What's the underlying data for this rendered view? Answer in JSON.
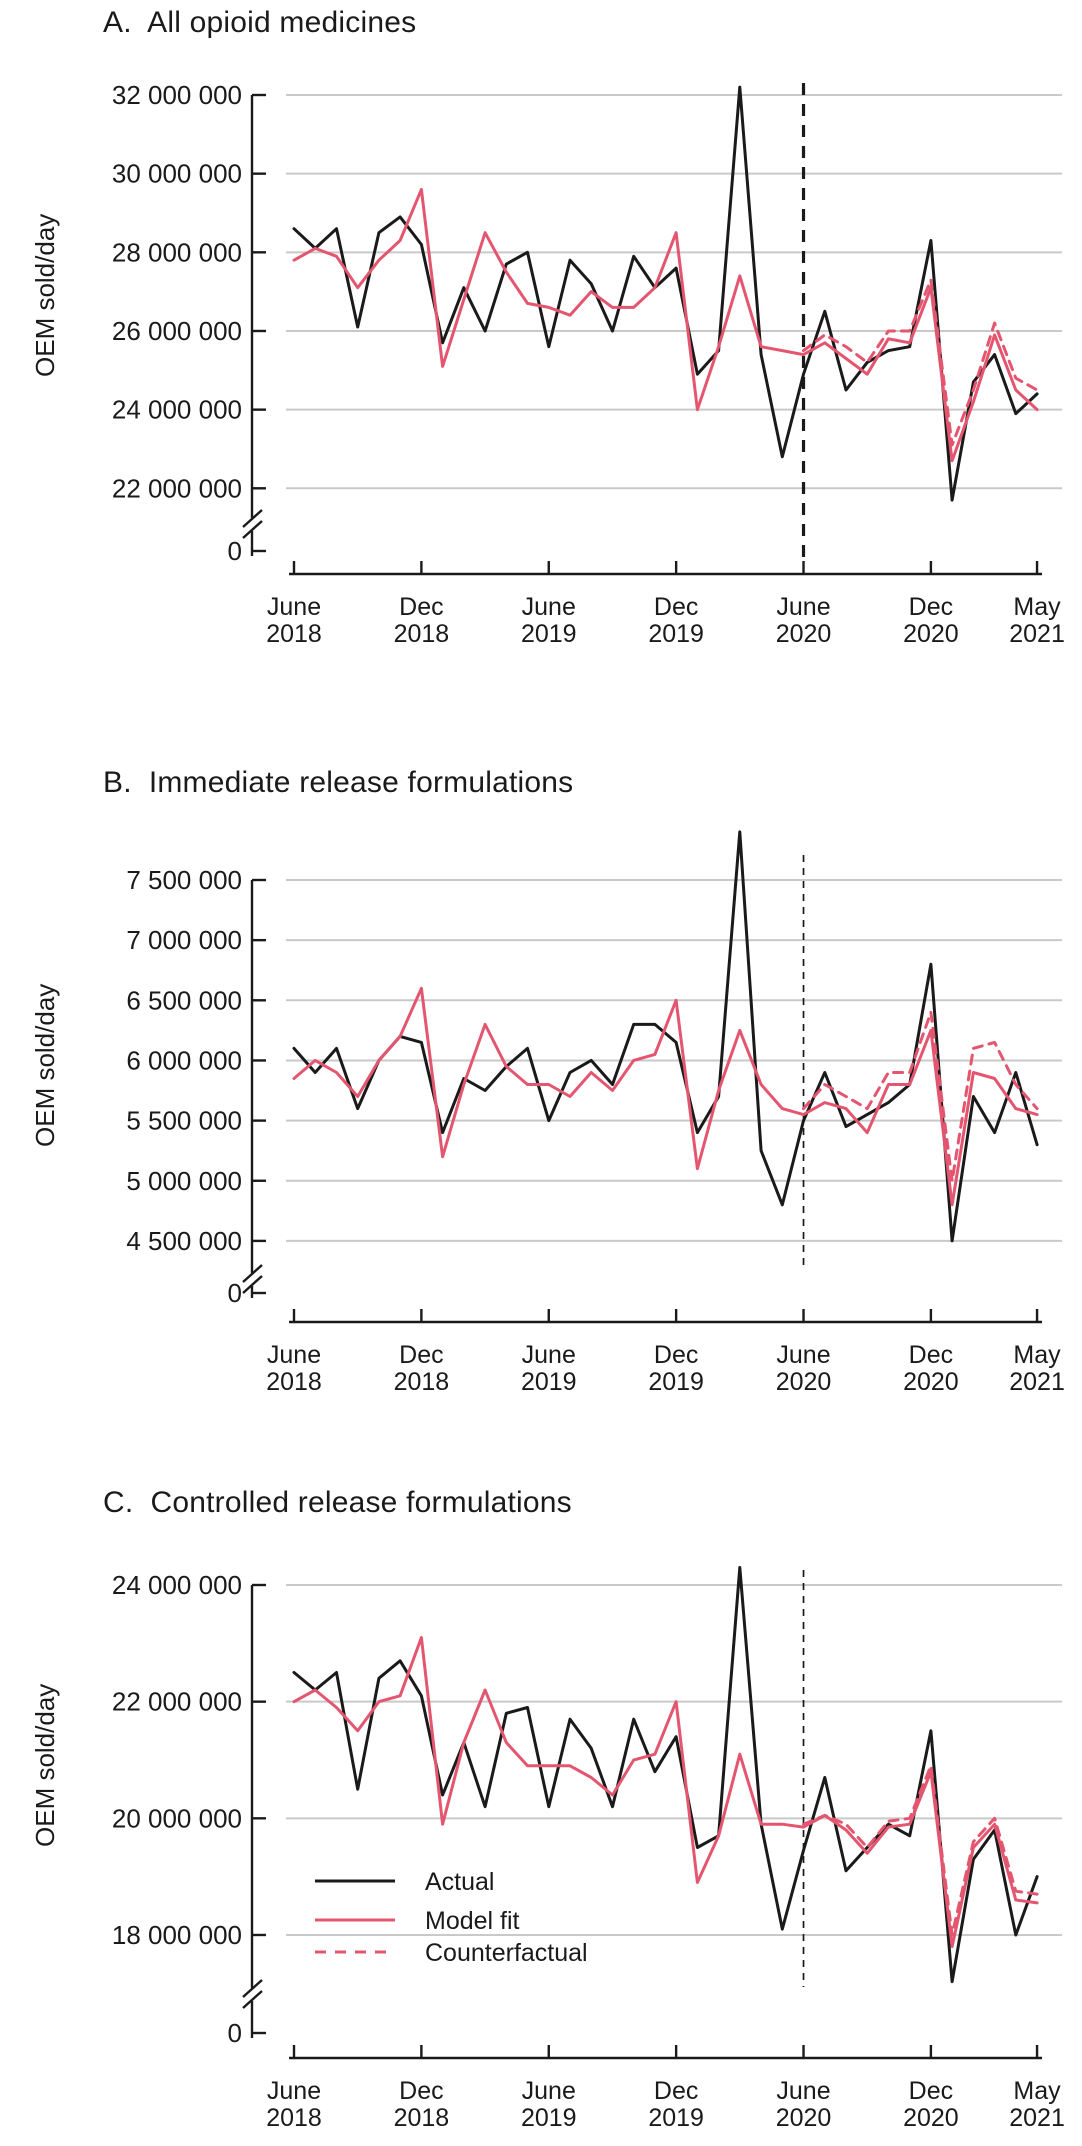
{
  "figure": {
    "ylabel": "OEM sold/day",
    "colors": {
      "actual": "#1a1a1a",
      "model": "#e4566f",
      "grid": "#c9c9c9",
      "axis": "#1a1a1a"
    },
    "x_axis": {
      "unit": "month",
      "start": "June 2018",
      "end": "May 2021",
      "n_points": 36,
      "tick_labels": [
        [
          "June",
          "2018"
        ],
        [
          "Dec",
          "2018"
        ],
        [
          "June",
          "2019"
        ],
        [
          "Dec",
          "2019"
        ],
        [
          "June",
          "2020"
        ],
        [
          "Dec",
          "2020"
        ],
        [
          "May",
          "2021"
        ]
      ],
      "tick_month_index": [
        0,
        6,
        12,
        18,
        24,
        30,
        35
      ]
    },
    "intervention_line": {
      "month_index": 24,
      "at": "June 2020",
      "style": "dashed-black-vertical"
    },
    "legend": {
      "entries": [
        "Actual",
        "Model fit",
        "Counterfactual"
      ],
      "location": "inside panel C, lower left"
    }
  },
  "chart_data": [
    {
      "panel": "A",
      "title": "A.  All opioid medicines",
      "type": "line",
      "ylabel": "OEM sold/day",
      "y_ticks": [
        32000000,
        30000000,
        28000000,
        26000000,
        24000000,
        22000000
      ],
      "y_tick_labels": [
        "32 000 000",
        "30 000 000",
        "28 000 000",
        "26 000 000",
        "24 000 000",
        "22 000 000"
      ],
      "zero_label": "0",
      "y_axis_break": true,
      "intervention_index": 24,
      "show_legend": false,
      "series": [
        {
          "name": "Actual",
          "style": "solid",
          "color": "#1a1a1a",
          "start_index": 0,
          "values": [
            28600000,
            28100000,
            28600000,
            26100000,
            28500000,
            28900000,
            28200000,
            25700000,
            27100000,
            26000000,
            27700000,
            28000000,
            25600000,
            27800000,
            27200000,
            26000000,
            27900000,
            27100000,
            27600000,
            24900000,
            25500000,
            32200000,
            25400000,
            22800000,
            24900000,
            26500000,
            24500000,
            25200000,
            25500000,
            25600000,
            28300000,
            21700000,
            24700000,
            25400000,
            23900000,
            24400000
          ]
        },
        {
          "name": "Model fit",
          "style": "solid",
          "color": "#e4566f",
          "start_index": 0,
          "values": [
            27800000,
            28100000,
            27900000,
            27100000,
            27800000,
            28300000,
            29600000,
            25100000,
            26800000,
            28500000,
            27500000,
            26700000,
            26600000,
            26400000,
            27000000,
            26600000,
            26600000,
            27100000,
            28500000,
            24000000,
            25600000,
            27400000,
            25600000,
            25500000,
            25400000,
            25700000,
            25300000,
            24900000,
            25800000,
            25700000,
            27100000,
            22700000,
            24200000,
            25900000,
            24500000,
            24000000
          ]
        },
        {
          "name": "Counterfactual",
          "style": "dashed",
          "color": "#e4566f",
          "start_index": 24,
          "values": [
            25500000,
            25900000,
            25600000,
            25200000,
            26000000,
            26000000,
            27300000,
            23100000,
            24500000,
            26200000,
            24800000,
            24500000
          ]
        }
      ]
    },
    {
      "panel": "B",
      "title": "B.  Immediate release formulations",
      "type": "line",
      "ylabel": "OEM sold/day",
      "y_ticks": [
        7500000,
        7000000,
        6500000,
        6000000,
        5500000,
        5000000,
        4500000
      ],
      "y_tick_labels": [
        "7 500 000",
        "7 000 000",
        "6 500 000",
        "6 000 000",
        "5 500 000",
        "5 000 000",
        "4 500 000"
      ],
      "zero_label": "0",
      "y_axis_break": true,
      "intervention_index": 24,
      "show_legend": false,
      "series": [
        {
          "name": "Actual",
          "style": "solid",
          "color": "#1a1a1a",
          "start_index": 0,
          "values": [
            6100000,
            5900000,
            6100000,
            5600000,
            6000000,
            6200000,
            6150000,
            5400000,
            5850000,
            5750000,
            5950000,
            6100000,
            5500000,
            5900000,
            6000000,
            5800000,
            6300000,
            6300000,
            6150000,
            5400000,
            5700000,
            7900000,
            5250000,
            4800000,
            5500000,
            5900000,
            5450000,
            5550000,
            5650000,
            5800000,
            6800000,
            4500000,
            5700000,
            5400000,
            5900000,
            5300000
          ]
        },
        {
          "name": "Model fit",
          "style": "solid",
          "color": "#e4566f",
          "start_index": 0,
          "values": [
            5850000,
            6000000,
            5900000,
            5700000,
            6000000,
            6200000,
            6600000,
            5200000,
            5800000,
            6300000,
            5950000,
            5800000,
            5800000,
            5700000,
            5900000,
            5750000,
            6000000,
            6050000,
            6500000,
            5100000,
            5750000,
            6250000,
            5800000,
            5600000,
            5550000,
            5650000,
            5600000,
            5400000,
            5800000,
            5800000,
            6250000,
            4800000,
            5900000,
            5850000,
            5600000,
            5550000
          ]
        },
        {
          "name": "Counterfactual",
          "style": "dashed",
          "color": "#e4566f",
          "start_index": 24,
          "values": [
            5600000,
            5800000,
            5700000,
            5600000,
            5900000,
            5900000,
            6400000,
            5000000,
            6100000,
            6150000,
            5800000,
            5600000
          ]
        }
      ]
    },
    {
      "panel": "C",
      "title": "C.  Controlled release formulations",
      "type": "line",
      "ylabel": "OEM sold/day",
      "y_ticks": [
        24000000,
        22000000,
        20000000,
        18000000
      ],
      "y_tick_labels": [
        "24 000 000",
        "22 000 000",
        "20 000 000",
        "18 000 000"
      ],
      "zero_label": "0",
      "y_axis_break": true,
      "intervention_index": 24,
      "show_legend": true,
      "series": [
        {
          "name": "Actual",
          "style": "solid",
          "color": "#1a1a1a",
          "start_index": 0,
          "values": [
            22500000,
            22200000,
            22500000,
            20500000,
            22400000,
            22700000,
            22100000,
            20400000,
            21300000,
            20200000,
            21800000,
            21900000,
            20200000,
            21700000,
            21200000,
            20200000,
            21700000,
            20800000,
            21400000,
            19500000,
            19700000,
            24300000,
            19900000,
            18100000,
            19450000,
            20700000,
            19100000,
            19500000,
            19900000,
            19700000,
            21500000,
            17200000,
            19300000,
            19800000,
            18000000,
            19000000
          ]
        },
        {
          "name": "Model fit",
          "style": "solid",
          "color": "#e4566f",
          "start_index": 0,
          "values": [
            22000000,
            22200000,
            21900000,
            21500000,
            22000000,
            22100000,
            23100000,
            19900000,
            21300000,
            22200000,
            21300000,
            20900000,
            20900000,
            20900000,
            20700000,
            20400000,
            21000000,
            21100000,
            22000000,
            18900000,
            19700000,
            21100000,
            19900000,
            19900000,
            19850000,
            20050000,
            19800000,
            19400000,
            19850000,
            19900000,
            20800000,
            17800000,
            19500000,
            19900000,
            18600000,
            18550000
          ]
        },
        {
          "name": "Counterfactual",
          "style": "dashed",
          "color": "#e4566f",
          "start_index": 24,
          "values": [
            19900000,
            20050000,
            19900000,
            19500000,
            19950000,
            20000000,
            20900000,
            18000000,
            19600000,
            20000000,
            18750000,
            18700000
          ]
        }
      ]
    }
  ]
}
